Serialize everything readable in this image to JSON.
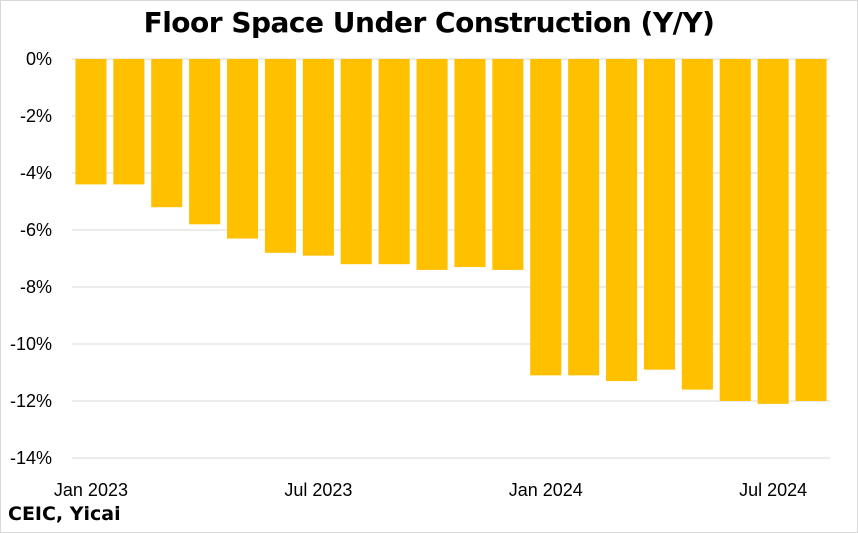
{
  "chart_data": {
    "type": "bar",
    "title": "Floor Space Under Construction (Y/Y)",
    "xlabel": "",
    "ylabel": "",
    "ylim": [
      -14,
      0
    ],
    "y_ticks": [
      "0%",
      "-2%",
      "-4%",
      "-6%",
      "-8%",
      "-10%",
      "-12%",
      "-14%"
    ],
    "x_tick_labels": [
      "Jan 2023",
      "Jul 2023",
      "Jan 2024",
      "Jul 2024"
    ],
    "categories": [
      "Jan 2023",
      "Feb 2023",
      "Mar 2023",
      "Apr 2023",
      "May 2023",
      "Jun 2023",
      "Jul 2023",
      "Aug 2023",
      "Sep 2023",
      "Oct 2023",
      "Nov 2023",
      "Dec 2023",
      "Jan 2024",
      "Feb 2024",
      "Mar 2024",
      "Apr 2024",
      "May 2024",
      "Jun 2024",
      "Jul 2024",
      "Aug 2024"
    ],
    "values": [
      -4.4,
      -4.4,
      -5.2,
      -5.8,
      -6.3,
      -6.8,
      -6.9,
      -7.2,
      -7.2,
      -7.4,
      -7.3,
      -7.4,
      -11.1,
      -11.1,
      -11.3,
      -10.9,
      -11.6,
      -12.0,
      -12.1,
      -12.0
    ],
    "bar_color": "#FFC000",
    "grid": true,
    "legend": "none"
  },
  "source": "CEIC, Yicai"
}
